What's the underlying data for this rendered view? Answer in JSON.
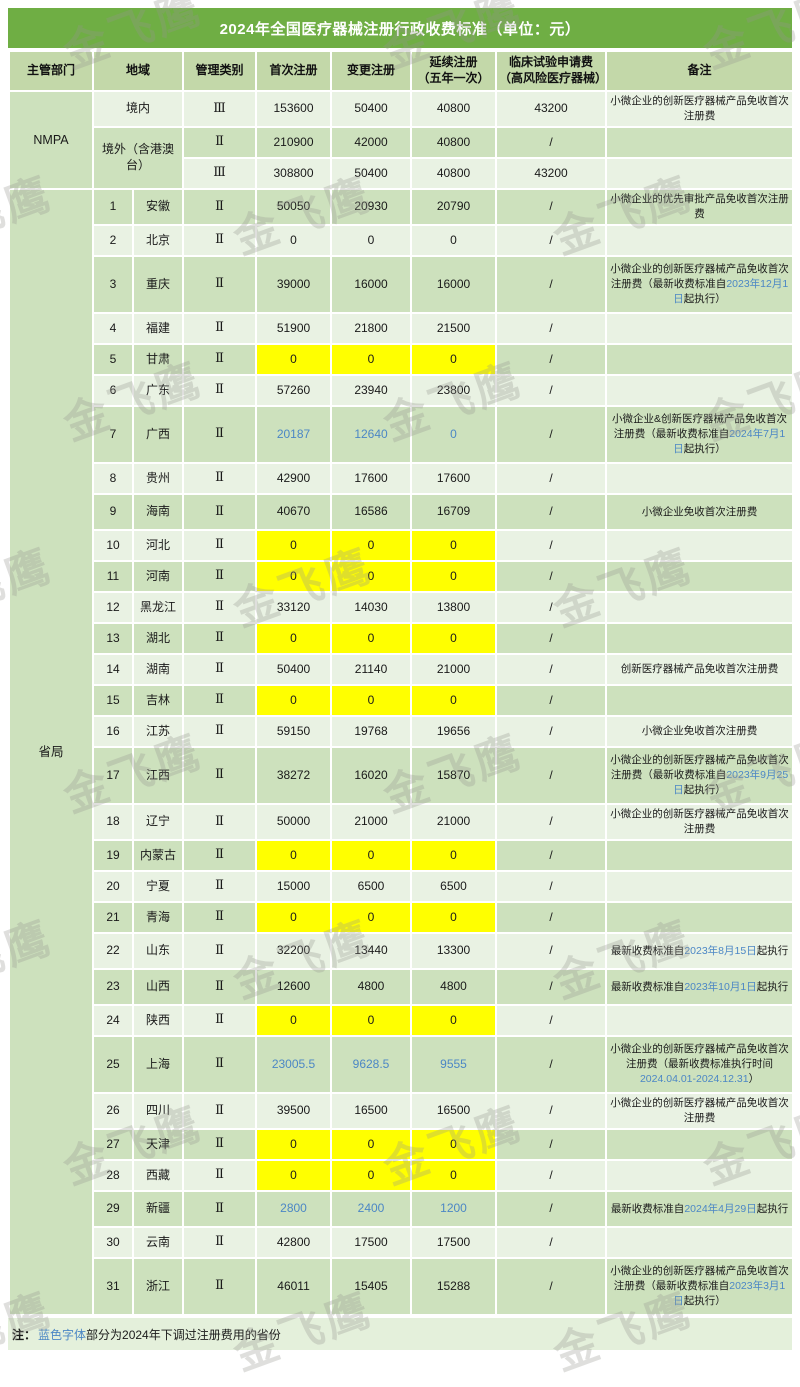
{
  "title": "2024年全国医疗器械注册行政收费标准（单位：元）",
  "watermark": "金飞鹰",
  "note": {
    "prefix": "注：",
    "blue": "蓝色字体",
    "rest": "部分为2024年下调过注册费用的省份"
  },
  "colors": {
    "title_bg": "#6FAE44",
    "header_bg": "#C3D8A9",
    "row_mid": "#CDE1BD",
    "row_light": "#E9F2E3",
    "highlight_yellow": "#FFFF00",
    "blue_text": "#4C87C5",
    "note_bg": "#E4F0DB"
  },
  "header": {
    "authority": "主管部门",
    "region": "地域",
    "category": "管理类别",
    "first": "首次注册",
    "change": "变更注册",
    "renew_l1": "延续注册",
    "renew_l2": "（五年一次）",
    "clinical_l1": "临床试验申请费",
    "clinical_l2": "（高风险医疗器械）",
    "remark": "备注"
  },
  "nmpa": {
    "label": "NMPA",
    "rows": [
      {
        "region": "境内",
        "region_shade": "light",
        "region_rowspan": 1,
        "category": "Ⅲ",
        "first": "153600",
        "change": "50400",
        "renew": "40800",
        "clinical": "43200",
        "remark": [
          {
            "t": "小微企业的创新医疗器械产品免收首次注册费"
          }
        ],
        "shade": "light",
        "h": "h2"
      },
      {
        "region": "境外（含港澳台）",
        "region_shade": "mid",
        "region_rowspan": 2,
        "category": "Ⅱ",
        "first": "210900",
        "change": "42000",
        "renew": "40800",
        "clinical": "/",
        "remark": [],
        "shade": "mid",
        "h": "h1"
      },
      {
        "category": "Ⅲ",
        "first": "308800",
        "change": "50400",
        "renew": "40800",
        "clinical": "43200",
        "remark": [],
        "shade": "light",
        "h": "h1"
      }
    ]
  },
  "provincial": {
    "label": "省局",
    "rows": [
      {
        "no": "1",
        "name": "安徽",
        "category": "Ⅱ",
        "first": "50050",
        "change": "20930",
        "renew": "20790",
        "clinical": "/",
        "yellow": false,
        "blue_values": false,
        "shade": "mid",
        "h": "h2",
        "remark": [
          {
            "t": "小微企业的优先审批产品免收首次注册费"
          }
        ]
      },
      {
        "no": "2",
        "name": "北京",
        "category": "Ⅱ",
        "first": "0",
        "change": "0",
        "renew": "0",
        "clinical": "/",
        "yellow": false,
        "blue_values": false,
        "shade": "light",
        "h": "h1",
        "remark": []
      },
      {
        "no": "3",
        "name": "重庆",
        "category": "Ⅱ",
        "first": "39000",
        "change": "16000",
        "renew": "16000",
        "clinical": "/",
        "yellow": false,
        "blue_values": false,
        "shade": "mid",
        "h": "h3",
        "remark": [
          {
            "t": "小微企业的创新医疗器械产品免收首次注册费（最新收费标准自"
          },
          {
            "t": "2023年12月1日",
            "blue": true
          },
          {
            "t": "起执行）"
          }
        ]
      },
      {
        "no": "4",
        "name": "福建",
        "category": "Ⅱ",
        "first": "51900",
        "change": "21800",
        "renew": "21500",
        "clinical": "/",
        "yellow": false,
        "blue_values": false,
        "shade": "light",
        "h": "h1",
        "remark": []
      },
      {
        "no": "5",
        "name": "甘肃",
        "category": "Ⅱ",
        "first": "0",
        "change": "0",
        "renew": "0",
        "clinical": "/",
        "yellow": true,
        "blue_values": false,
        "shade": "mid",
        "h": "h1",
        "remark": []
      },
      {
        "no": "6",
        "name": "广东",
        "category": "Ⅱ",
        "first": "57260",
        "change": "23940",
        "renew": "23800",
        "clinical": "/",
        "yellow": false,
        "blue_values": false,
        "shade": "light",
        "h": "h1",
        "remark": []
      },
      {
        "no": "7",
        "name": "广西",
        "category": "Ⅱ",
        "first": "20187",
        "change": "12640",
        "renew": "0",
        "clinical": "/",
        "yellow": false,
        "blue_values": true,
        "shade": "mid",
        "h": "h3",
        "remark": [
          {
            "t": "小微企业&创新医疗器械产品免收首次注册费（最新收费标准自"
          },
          {
            "t": "2024年7月1日",
            "blue": true
          },
          {
            "t": "起执行）"
          }
        ]
      },
      {
        "no": "8",
        "name": "贵州",
        "category": "Ⅱ",
        "first": "42900",
        "change": "17600",
        "renew": "17600",
        "clinical": "/",
        "yellow": false,
        "blue_values": false,
        "shade": "light",
        "h": "h1",
        "remark": []
      },
      {
        "no": "9",
        "name": "海南",
        "category": "Ⅱ",
        "first": "40670",
        "change": "16586",
        "renew": "16709",
        "clinical": "/",
        "yellow": false,
        "blue_values": false,
        "shade": "mid",
        "h": "h2",
        "remark": [
          {
            "t": "小微企业免收首次注册费"
          }
        ]
      },
      {
        "no": "10",
        "name": "河北",
        "category": "Ⅱ",
        "first": "0",
        "change": "0",
        "renew": "0",
        "clinical": "/",
        "yellow": true,
        "blue_values": false,
        "shade": "light",
        "h": "h1",
        "remark": []
      },
      {
        "no": "11",
        "name": "河南",
        "category": "Ⅱ",
        "first": "0",
        "change": "0",
        "renew": "0",
        "clinical": "/",
        "yellow": true,
        "blue_values": false,
        "shade": "mid",
        "h": "h1",
        "remark": []
      },
      {
        "no": "12",
        "name": "黑龙江",
        "category": "Ⅱ",
        "first": "33120",
        "change": "14030",
        "renew": "13800",
        "clinical": "/",
        "yellow": false,
        "blue_values": false,
        "shade": "light",
        "h": "h1",
        "remark": []
      },
      {
        "no": "13",
        "name": "湖北",
        "category": "Ⅱ",
        "first": "0",
        "change": "0",
        "renew": "0",
        "clinical": "/",
        "yellow": true,
        "blue_values": false,
        "shade": "mid",
        "h": "h1",
        "remark": []
      },
      {
        "no": "14",
        "name": "湖南",
        "category": "Ⅱ",
        "first": "50400",
        "change": "21140",
        "renew": "21000",
        "clinical": "/",
        "yellow": false,
        "blue_values": false,
        "shade": "light",
        "h": "h1",
        "remark": [
          {
            "t": "创新医疗器械产品免收首次注册费"
          }
        ]
      },
      {
        "no": "15",
        "name": "吉林",
        "category": "Ⅱ",
        "first": "0",
        "change": "0",
        "renew": "0",
        "clinical": "/",
        "yellow": true,
        "blue_values": false,
        "shade": "mid",
        "h": "h1",
        "remark": []
      },
      {
        "no": "16",
        "name": "江苏",
        "category": "Ⅱ",
        "first": "59150",
        "change": "19768",
        "renew": "19656",
        "clinical": "/",
        "yellow": false,
        "blue_values": false,
        "shade": "light",
        "h": "h1",
        "remark": [
          {
            "t": "小微企业免收首次注册费"
          }
        ]
      },
      {
        "no": "17",
        "name": "江西",
        "category": "Ⅱ",
        "first": "38272",
        "change": "16020",
        "renew": "15870",
        "clinical": "/",
        "yellow": false,
        "blue_values": false,
        "shade": "mid",
        "h": "h3",
        "remark": [
          {
            "t": "小微企业的创新医疗器械产品免收首次注册费（最新收费标准自"
          },
          {
            "t": "2023年9月25日",
            "blue": true
          },
          {
            "t": "起执行）"
          }
        ]
      },
      {
        "no": "18",
        "name": "辽宁",
        "category": "Ⅱ",
        "first": "50000",
        "change": "21000",
        "renew": "21000",
        "clinical": "/",
        "yellow": false,
        "blue_values": false,
        "shade": "light",
        "h": "h2",
        "remark": [
          {
            "t": "小微企业的创新医疗器械产品免收首次注册费"
          }
        ]
      },
      {
        "no": "19",
        "name": "内蒙古",
        "category": "Ⅱ",
        "first": "0",
        "change": "0",
        "renew": "0",
        "clinical": "/",
        "yellow": true,
        "blue_values": false,
        "shade": "mid",
        "h": "h1",
        "remark": []
      },
      {
        "no": "20",
        "name": "宁夏",
        "category": "Ⅱ",
        "first": "15000",
        "change": "6500",
        "renew": "6500",
        "clinical": "/",
        "yellow": false,
        "blue_values": false,
        "shade": "light",
        "h": "h1",
        "remark": []
      },
      {
        "no": "21",
        "name": "青海",
        "category": "Ⅱ",
        "first": "0",
        "change": "0",
        "renew": "0",
        "clinical": "/",
        "yellow": true,
        "blue_values": false,
        "shade": "mid",
        "h": "h1",
        "remark": []
      },
      {
        "no": "22",
        "name": "山东",
        "category": "Ⅱ",
        "first": "32200",
        "change": "13440",
        "renew": "13300",
        "clinical": "/",
        "yellow": false,
        "blue_values": false,
        "shade": "light",
        "h": "h2",
        "remark": [
          {
            "t": "最新收费标准自"
          },
          {
            "t": "2023年8月15日",
            "blue": true
          },
          {
            "t": "起执行"
          }
        ]
      },
      {
        "no": "23",
        "name": "山西",
        "category": "Ⅱ",
        "first": "12600",
        "change": "4800",
        "renew": "4800",
        "clinical": "/",
        "yellow": false,
        "blue_values": false,
        "shade": "mid",
        "h": "h2",
        "remark": [
          {
            "t": "最新收费标准自"
          },
          {
            "t": "2023年10月1日",
            "blue": true
          },
          {
            "t": "起执行"
          }
        ]
      },
      {
        "no": "24",
        "name": "陕西",
        "category": "Ⅱ",
        "first": "0",
        "change": "0",
        "renew": "0",
        "clinical": "/",
        "yellow": true,
        "blue_values": false,
        "shade": "light",
        "h": "h1",
        "remark": []
      },
      {
        "no": "25",
        "name": "上海",
        "category": "Ⅱ",
        "first": "23005.5",
        "change": "9628.5",
        "renew": "9555",
        "clinical": "/",
        "yellow": false,
        "blue_values": true,
        "shade": "mid",
        "h": "h3",
        "remark": [
          {
            "t": "小微企业的创新医疗器械产品免收首次注册费（最新收费标准执行时间"
          },
          {
            "t": "2024.04.01-2024.12.31",
            "blue": true
          },
          {
            "t": "）"
          }
        ]
      },
      {
        "no": "26",
        "name": "四川",
        "category": "Ⅱ",
        "first": "39500",
        "change": "16500",
        "renew": "16500",
        "clinical": "/",
        "yellow": false,
        "blue_values": false,
        "shade": "light",
        "h": "h2",
        "remark": [
          {
            "t": "小微企业的创新医疗器械产品免收首次注册费"
          }
        ]
      },
      {
        "no": "27",
        "name": "天津",
        "category": "Ⅱ",
        "first": "0",
        "change": "0",
        "renew": "0",
        "clinical": "/",
        "yellow": true,
        "blue_values": false,
        "shade": "mid",
        "h": "h1",
        "remark": []
      },
      {
        "no": "28",
        "name": "西藏",
        "category": "Ⅱ",
        "first": "0",
        "change": "0",
        "renew": "0",
        "clinical": "/",
        "yellow": true,
        "blue_values": false,
        "shade": "light",
        "h": "h1",
        "remark": []
      },
      {
        "no": "29",
        "name": "新疆",
        "category": "Ⅱ",
        "first": "2800",
        "change": "2400",
        "renew": "1200",
        "clinical": "/",
        "yellow": false,
        "blue_values": true,
        "shade": "mid",
        "h": "h2",
        "remark": [
          {
            "t": "最新收费标准自"
          },
          {
            "t": "2024年4月29日",
            "blue": true
          },
          {
            "t": "起执行"
          }
        ]
      },
      {
        "no": "30",
        "name": "云南",
        "category": "Ⅱ",
        "first": "42800",
        "change": "17500",
        "renew": "17500",
        "clinical": "/",
        "yellow": false,
        "blue_values": false,
        "shade": "light",
        "h": "h1",
        "remark": []
      },
      {
        "no": "31",
        "name": "浙江",
        "category": "Ⅱ",
        "first": "46011",
        "change": "15405",
        "renew": "15288",
        "clinical": "/",
        "yellow": false,
        "blue_values": false,
        "shade": "mid",
        "h": "h3",
        "remark": [
          {
            "t": "小微企业的创新医疗器械产品免收首次注册费（最新收费标准自"
          },
          {
            "t": "2023年3月1日",
            "blue": true
          },
          {
            "t": "起执行）"
          }
        ]
      }
    ]
  }
}
